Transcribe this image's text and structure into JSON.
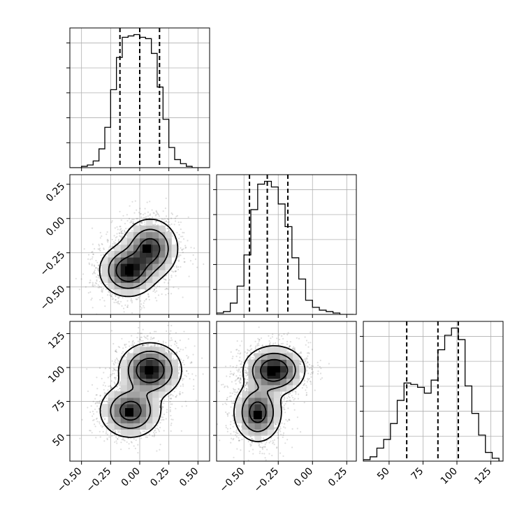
{
  "chart_data": {
    "type": "corner",
    "title": "",
    "parameters": [
      {
        "name": "",
        "lim": [
          -0.6,
          0.6
        ],
        "ticks": [
          -0.5,
          -0.25,
          0.0,
          0.25,
          0.5
        ],
        "tick_labels": [
          "−0.50",
          "−0.25",
          "0.00",
          "0.25",
          "0.50"
        ],
        "quantiles": [
          -0.17,
          0.0,
          0.17
        ]
      },
      {
        "name": "",
        "lim": [
          -0.7,
          0.32
        ],
        "ticks": [
          -0.5,
          -0.25,
          0.0,
          0.25
        ],
        "tick_labels": [
          "−0.50",
          "−0.25",
          "0.00",
          "0.25"
        ],
        "quantiles": [
          -0.46,
          -0.33,
          -0.18
        ]
      },
      {
        "name": "",
        "lim": [
          31,
          134
        ],
        "ticks": [
          50,
          75,
          100,
          125
        ],
        "tick_labels": [
          "50",
          "75",
          "100",
          "125"
        ],
        "quantiles": [
          63,
          86,
          101
        ]
      }
    ],
    "histograms": [
      {
        "bins": [
          -0.6,
          -0.55,
          -0.5,
          -0.45,
          -0.4,
          -0.35,
          -0.3,
          -0.25,
          -0.2,
          -0.15,
          -0.1,
          -0.05,
          0.0,
          0.05,
          0.1,
          0.15,
          0.2,
          0.25,
          0.3,
          0.35,
          0.4,
          0.45,
          0.5,
          0.55,
          0.6
        ],
        "counts": [
          0,
          0,
          1,
          2,
          5,
          14,
          30,
          58,
          82,
          97,
          98,
          99,
          97,
          96,
          85,
          60,
          36,
          15,
          6,
          3,
          1,
          0,
          0,
          0
        ]
      },
      {
        "bins": [
          -0.7,
          -0.65,
          -0.6,
          -0.55,
          -0.5,
          -0.45,
          -0.4,
          -0.35,
          -0.3,
          -0.25,
          -0.2,
          -0.15,
          -0.1,
          -0.05,
          0.0,
          0.05,
          0.1,
          0.15,
          0.2,
          0.25,
          0.3
        ],
        "counts": [
          1,
          2,
          8,
          20,
          42,
          74,
          92,
          94,
          90,
          78,
          62,
          40,
          25,
          10,
          5,
          3,
          2,
          1,
          0,
          0
        ]
      },
      {
        "bins": [
          31,
          36,
          41,
          46,
          51,
          56,
          61,
          66,
          71,
          76,
          81,
          86,
          91,
          96,
          101,
          106,
          111,
          116,
          121,
          126,
          131,
          136
        ],
        "counts": [
          1,
          3,
          9,
          15,
          26,
          42,
          54,
          53,
          51,
          47,
          56,
          77,
          87,
          92,
          84,
          52,
          33,
          18,
          6,
          2,
          0
        ]
      }
    ],
    "pairs": [
      {
        "x_param": 0,
        "y_param": 1,
        "components": [
          {
            "cx": -0.1,
            "cy": -0.38,
            "sx": 0.11,
            "sy": 0.085,
            "w": 0.5
          },
          {
            "cx": 0.09,
            "cy": -0.22,
            "sx": 0.11,
            "sy": 0.1,
            "w": 0.5
          }
        ],
        "density_peaks": [
          {
            "x": -0.09,
            "y": -0.38
          },
          {
            "x": 0.06,
            "y": -0.22
          }
        ]
      },
      {
        "x_param": 0,
        "y_param": 2,
        "components": [
          {
            "cx": -0.08,
            "cy": 68,
            "sx": 0.12,
            "sy": 9,
            "w": 0.45
          },
          {
            "cx": 0.09,
            "cy": 98,
            "sx": 0.12,
            "sy": 9,
            "w": 0.55
          }
        ],
        "density_peaks": [
          {
            "x": -0.09,
            "y": 67
          },
          {
            "x": 0.08,
            "y": 98
          }
        ]
      },
      {
        "x_param": 1,
        "y_param": 2,
        "components": [
          {
            "cx": -0.4,
            "cy": 67,
            "sx": 0.08,
            "sy": 10,
            "w": 0.45
          },
          {
            "cx": -0.28,
            "cy": 98,
            "sx": 0.1,
            "sy": 8,
            "w": 0.55
          }
        ],
        "density_peaks": [
          {
            "x": -0.4,
            "y": 65
          },
          {
            "x": -0.3,
            "y": 97
          }
        ]
      }
    ],
    "grid": true,
    "legend": null
  }
}
